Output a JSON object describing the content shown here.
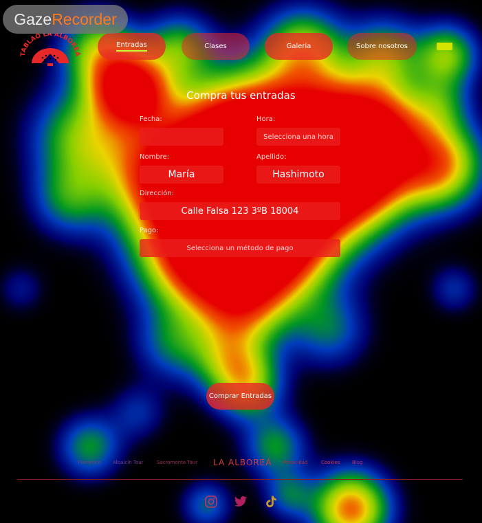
{
  "watermark": {
    "part1": "Gaze",
    "part2": "Recorder"
  },
  "logo": {
    "name": "TABLAO LA ALBOREÁ"
  },
  "nav": {
    "items": [
      {
        "label": "Entradas"
      },
      {
        "label": "Clases"
      },
      {
        "label": "Galeria"
      },
      {
        "label": "Sobre nosotros"
      }
    ]
  },
  "form": {
    "title": "Compra tus entradas",
    "fecha_label": "Fecha:",
    "fecha_value": "",
    "hora_label": "Hora:",
    "hora_placeholder": "Selecciona una hora",
    "nombre_label": "Nombre:",
    "nombre_value": "María",
    "apellido_label": "Apellido:",
    "apellido_value": "Hashimoto",
    "direccion_label": "Dirección:",
    "direccion_value": "Calle Falsa 123 3ºB 18004",
    "pago_label": "Pago:",
    "pago_placeholder": "Selecciona un método de pago",
    "submit_label": "Comprar Entradas"
  },
  "footer": {
    "links": [
      "Flamenco",
      "Albaicín Tour",
      "Sacromonte Tour",
      "Privacidad",
      "Cookies",
      "Blog"
    ],
    "brand": "LA ALBOREÁ"
  },
  "colors": {
    "accent": "#e82828",
    "background": "#000000",
    "active_underline": "#c9ff3a"
  }
}
